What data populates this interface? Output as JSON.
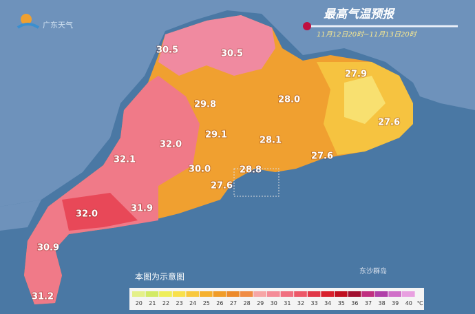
{
  "header": {
    "logo": "广东天气",
    "title": "最高气温预报",
    "period": "11月12日20时~11月13日20时"
  },
  "map": {
    "labels": [
      "30.5",
      "30.5",
      "29.8",
      "28.0",
      "27.9",
      "27.6",
      "29.1",
      "32.0",
      "28.1",
      "32.1",
      "27.6",
      "30.0",
      "28.8",
      "27.6",
      "32.0",
      "31.9",
      "30.9",
      "31.2"
    ],
    "island": "东沙群岛",
    "note": "本图为示意图"
  },
  "legend": {
    "unit": "℃",
    "items": [
      {
        "label": "20",
        "color": "#e4f08a"
      },
      {
        "label": "21",
        "color": "#d2ea66"
      },
      {
        "label": "22",
        "color": "#eeee5a"
      },
      {
        "label": "23",
        "color": "#f8e04c"
      },
      {
        "label": "24",
        "color": "#f8c83e"
      },
      {
        "label": "25",
        "color": "#f5b02e"
      },
      {
        "label": "26",
        "color": "#f09c28"
      },
      {
        "label": "27",
        "color": "#ec8a2a"
      },
      {
        "label": "28",
        "color": "#f08c44"
      },
      {
        "label": "29",
        "color": "#f6a6a6"
      },
      {
        "label": "30",
        "color": "#f48c98"
      },
      {
        "label": "31",
        "color": "#f07080"
      },
      {
        "label": "32",
        "color": "#ec5868"
      },
      {
        "label": "33",
        "color": "#e03848"
      },
      {
        "label": "34",
        "color": "#d8202c"
      },
      {
        "label": "35",
        "color": "#c01020"
      },
      {
        "label": "36",
        "color": "#a01030"
      },
      {
        "label": "37",
        "color": "#c03080"
      },
      {
        "label": "38",
        "color": "#b040a8"
      },
      {
        "label": "39",
        "color": "#d070c8"
      },
      {
        "label": "40",
        "color": "#e8a0e0"
      }
    ]
  }
}
